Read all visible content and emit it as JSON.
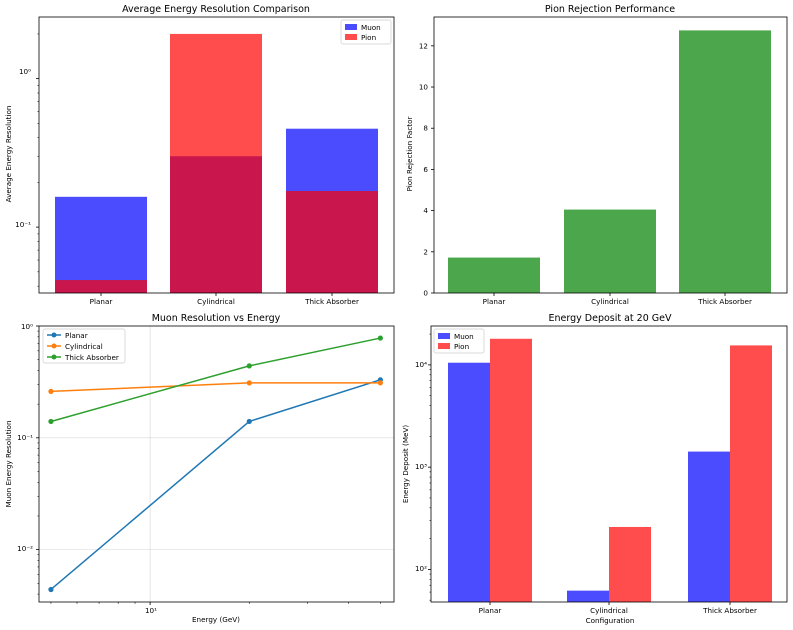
{
  "chart_data": [
    {
      "type": "bar",
      "title": "Average Energy Resolution Comparison",
      "xlabel": "",
      "ylabel": "Average Energy Resolution",
      "yscale": "log",
      "ylim": [
        0.036,
        2.6
      ],
      "categories": [
        "Planar",
        "Cylindrical",
        "Thick Absorber"
      ],
      "series": [
        {
          "name": "Muon",
          "values": [
            0.16,
            0.3,
            0.46
          ],
          "color": "#0000ff",
          "alpha": 0.7
        },
        {
          "name": "Pion",
          "values": [
            0.044,
            2.0,
            0.175
          ],
          "color": "#ff0000",
          "alpha": 0.7
        }
      ],
      "ticks": [
        "10⁻¹",
        "10⁰"
      ],
      "legend": "top-right"
    },
    {
      "type": "bar",
      "title": "Pion Rejection Performance",
      "xlabel": "",
      "ylabel": "Pion Rejection Factor",
      "ylim": [
        0,
        13.4
      ],
      "categories": [
        "Planar",
        "Cylindrical",
        "Thick Absorber"
      ],
      "values": [
        1.72,
        4.05,
        12.75
      ],
      "color": "#008000",
      "alpha": 0.7,
      "ticks": [
        "0",
        "2",
        "4",
        "6",
        "8",
        "10",
        "12"
      ]
    },
    {
      "type": "line",
      "title": "Muon Resolution vs Energy",
      "xlabel": "Energy (GeV)",
      "ylabel": "Muon Energy Resolution",
      "xscale": "log",
      "yscale": "log",
      "xlim": [
        4.6,
        55
      ],
      "ylim": [
        0.0034,
        1.0
      ],
      "x": [
        5,
        20,
        50
      ],
      "series": [
        {
          "name": "Planar",
          "values": [
            0.0044,
            0.14,
            0.33
          ],
          "color": "#1f77b4"
        },
        {
          "name": "Cylindrical",
          "values": [
            0.26,
            0.31,
            0.31
          ],
          "color": "#ff7f0e"
        },
        {
          "name": "Thick Absorber",
          "values": [
            0.14,
            0.44,
            0.78
          ],
          "color": "#2ca02c"
        }
      ],
      "xticks": [
        "10¹"
      ],
      "yticks": [
        "10⁻²",
        "10⁻¹",
        "10⁰"
      ],
      "grid": true,
      "legend": "top-left"
    },
    {
      "type": "bar",
      "title": "Energy Deposit at 20 GeV",
      "xlabel": "Configuration",
      "ylabel": "Energy Deposit (MeV)",
      "yscale": "log",
      "ylim": [
        48,
        24000
      ],
      "categories": [
        "Planar",
        "Cylindrical",
        "Thick Absorber"
      ],
      "series": [
        {
          "name": "Muon",
          "values": [
            10500,
            62,
            1420
          ],
          "color": "#0000ff",
          "alpha": 0.7
        },
        {
          "name": "Pion",
          "values": [
            18000,
            260,
            15500
          ],
          "color": "#ff0000",
          "alpha": 0.7
        }
      ],
      "ticks": [
        "10²",
        "10³",
        "10⁴"
      ],
      "legend": "top-left"
    }
  ]
}
